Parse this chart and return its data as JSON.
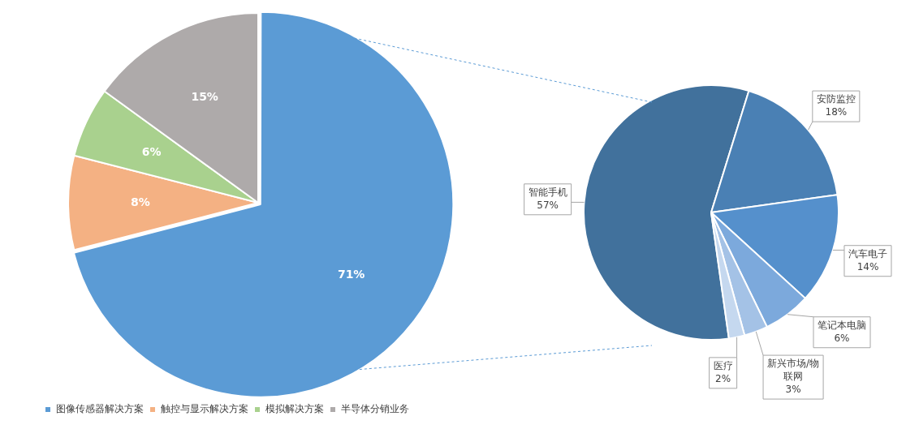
{
  "chart_data": [
    {
      "type": "pie",
      "categories": [
        "图像传感器解决方案",
        "触控与显示解决方案",
        "模拟解决方案",
        "半导体分销业务"
      ],
      "values": [
        71,
        8,
        6,
        15
      ],
      "colors": [
        "#5b9bd5",
        "#f4b183",
        "#a9d18e",
        "#aeaaaa"
      ],
      "value_labels": [
        "71%",
        "8%",
        "6%",
        "15%"
      ],
      "legend": "bottom"
    },
    {
      "type": "pie",
      "categories": [
        "智能手机",
        "安防监控",
        "汽车电子",
        "笔记本电脑",
        "新兴市场/物联网",
        "医疗"
      ],
      "values": [
        57,
        18,
        14,
        6,
        3,
        2
      ],
      "colors": [
        "#41719c",
        "#4a80b4",
        "#5590cc",
        "#7ca9dc",
        "#a4c2e6",
        "#c5d8ef"
      ],
      "value_labels": [
        "57%",
        "18%",
        "14%",
        "6%",
        "3%",
        "2%"
      ]
    }
  ]
}
